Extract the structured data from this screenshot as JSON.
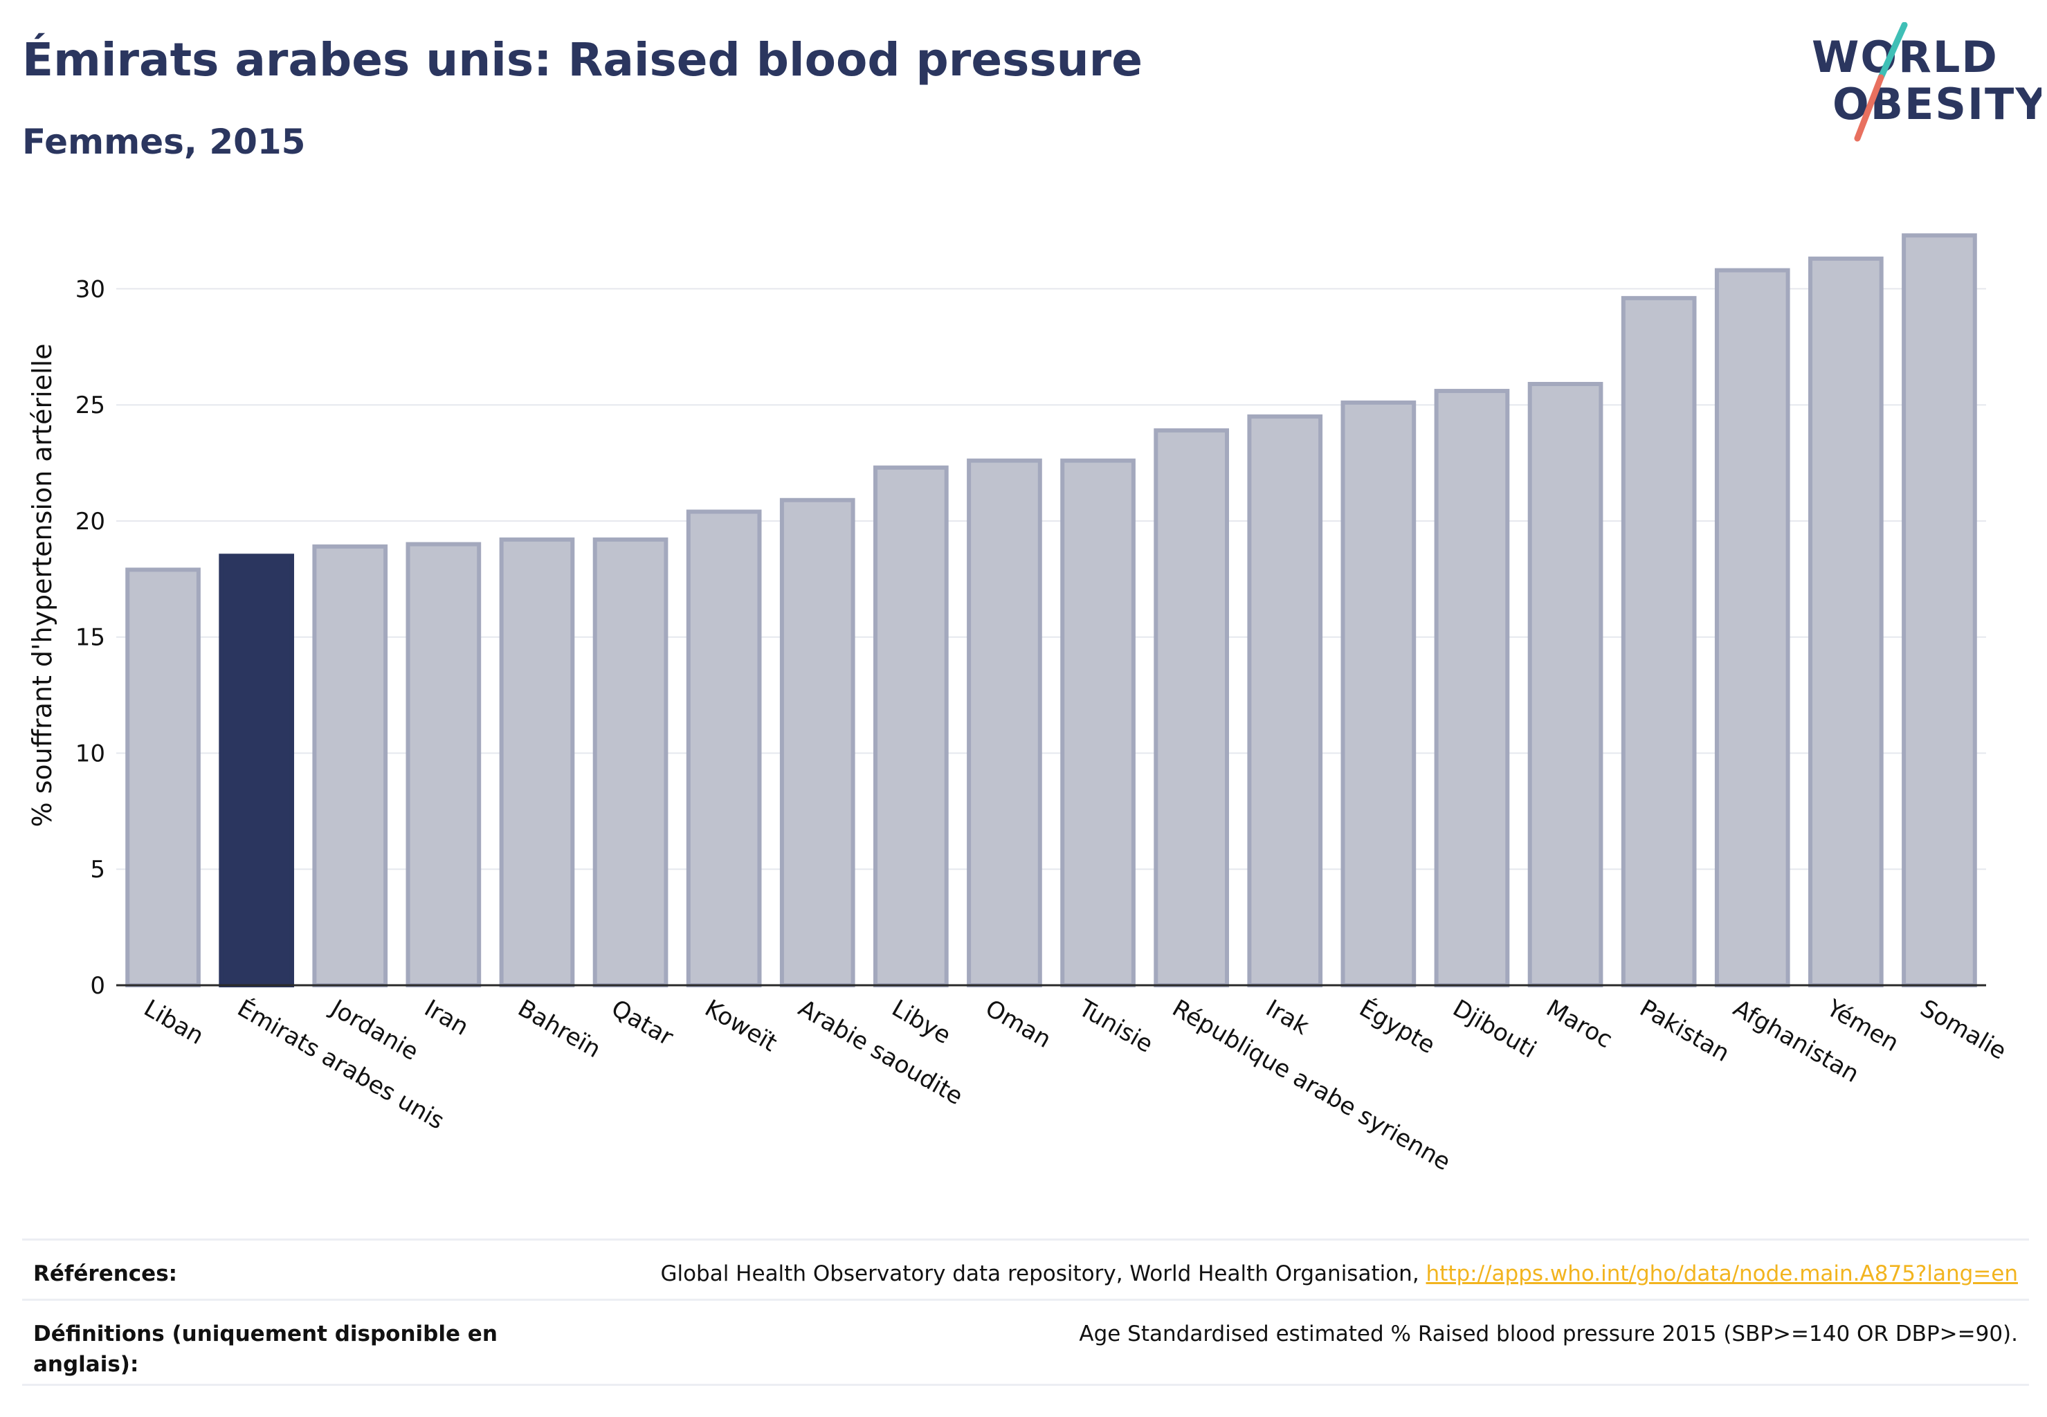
{
  "header": {
    "title": "Émirats arabes unis: Raised blood pressure",
    "subtitle": "Femmes, 2015"
  },
  "logo": {
    "line1": "WORLD",
    "line2": "OBESITY",
    "accent_teal": "#3fbfb6",
    "accent_coral": "#e8705f"
  },
  "chart_data": {
    "type": "bar",
    "categories": [
      "Liban",
      "Émirats arabes unis",
      "Jordanie",
      "Iran",
      "Bahreïn",
      "Qatar",
      "Koweït",
      "Arabie saoudite",
      "Libye",
      "Oman",
      "Tunisie",
      "République arabe syrienne",
      "Irak",
      "Égypte",
      "Djibouti",
      "Maroc",
      "Pakistan",
      "Afghanistan",
      "Yémen",
      "Somalie"
    ],
    "values": [
      17.9,
      18.5,
      18.9,
      19.0,
      19.2,
      19.2,
      20.4,
      20.9,
      22.3,
      22.6,
      22.6,
      23.9,
      24.5,
      25.1,
      25.6,
      25.9,
      29.6,
      30.8,
      31.3,
      32.3
    ],
    "highlight": "Émirats arabes unis",
    "ylabel": "% souffrant d'hypertension artérielle",
    "xlabel": "",
    "ylim": [
      0,
      33.5
    ],
    "yticks": [
      0,
      5,
      10,
      15,
      20,
      25,
      30
    ],
    "grid": true,
    "colors": {
      "bar": "#bfc2ce",
      "bar_edge": "#a3a8bd",
      "highlight": "#2b365f"
    }
  },
  "references": {
    "sources_label": "Références:",
    "sources_text": "Global Health Observatory data repository, World Health Organisation,",
    "sources_link": "http://apps.who.int/gho/data/node.main.A875?lang=en",
    "definitions_label": "Définitions (uniquement disponible en anglais):",
    "definitions_text": "Age Standardised estimated % Raised blood pressure 2015 (SBP>=140 OR DBP>=90)."
  }
}
